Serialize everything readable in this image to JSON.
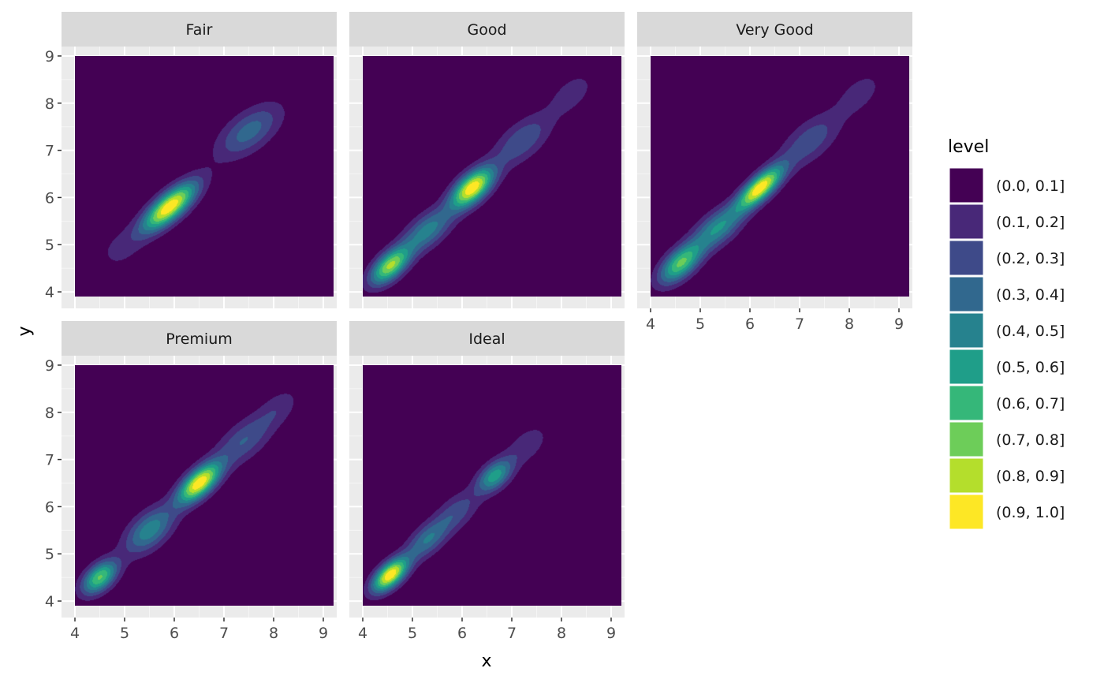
{
  "chart_data": {
    "type": "heatmap",
    "subtype": "faceted filled density contour",
    "xlabel": "x",
    "ylabel": "y",
    "xlim": [
      3.73,
      9.27
    ],
    "ylim": [
      3.65,
      9.2
    ],
    "x_ticks": [
      "4",
      "5",
      "6",
      "7",
      "8",
      "9"
    ],
    "y_ticks": [
      "4",
      "5",
      "6",
      "7",
      "8",
      "9"
    ],
    "density_domain": {
      "x": [
        4.0,
        9.2
      ],
      "y": [
        3.9,
        9.0
      ]
    },
    "grid": true,
    "legend": {
      "title": "level",
      "placement": "right",
      "entries": [
        "(0.0, 0.1]",
        "(0.1, 0.2]",
        "(0.2, 0.3]",
        "(0.3, 0.4]",
        "(0.4, 0.5]",
        "(0.5, 0.6]",
        "(0.6, 0.7]",
        "(0.7, 0.8]",
        "(0.8, 0.9]",
        "(0.9, 1.0]"
      ],
      "colors": [
        "#440154",
        "#482878",
        "#3E4A89",
        "#31688E",
        "#26828E",
        "#1F9E89",
        "#35B779",
        "#6DCD59",
        "#B4DE2C",
        "#FDE725"
      ]
    },
    "facets": [
      {
        "name": "Fair",
        "peaks": [
          {
            "x": 5.9,
            "y": 5.8,
            "sx": 0.38,
            "sy": 0.36,
            "rho": 0.75,
            "w": 1.0
          },
          {
            "x": 7.5,
            "y": 7.4,
            "sx": 0.45,
            "sy": 0.4,
            "rho": 0.6,
            "w": 0.35
          },
          {
            "x": 4.9,
            "y": 4.9,
            "sx": 0.35,
            "sy": 0.35,
            "rho": 0.3,
            "w": 0.12
          }
        ]
      },
      {
        "name": "Good",
        "peaks": [
          {
            "x": 6.2,
            "y": 6.2,
            "sx": 0.3,
            "sy": 0.3,
            "rho": 0.6,
            "w": 1.0
          },
          {
            "x": 4.55,
            "y": 4.55,
            "sx": 0.28,
            "sy": 0.28,
            "rho": 0.6,
            "w": 0.82
          },
          {
            "x": 5.3,
            "y": 5.3,
            "sx": 0.35,
            "sy": 0.33,
            "rho": 0.6,
            "w": 0.45
          },
          {
            "x": 7.2,
            "y": 7.2,
            "sx": 0.4,
            "sy": 0.38,
            "rho": 0.6,
            "w": 0.3
          },
          {
            "x": 8.2,
            "y": 8.2,
            "sx": 0.35,
            "sy": 0.35,
            "rho": 0.5,
            "w": 0.15
          }
        ]
      },
      {
        "name": "Very Good",
        "peaks": [
          {
            "x": 6.2,
            "y": 6.2,
            "sx": 0.32,
            "sy": 0.32,
            "rho": 0.75,
            "w": 1.0
          },
          {
            "x": 4.6,
            "y": 4.6,
            "sx": 0.3,
            "sy": 0.3,
            "rho": 0.6,
            "w": 0.72
          },
          {
            "x": 5.35,
            "y": 5.35,
            "sx": 0.35,
            "sy": 0.33,
            "rho": 0.6,
            "w": 0.5
          },
          {
            "x": 7.2,
            "y": 7.2,
            "sx": 0.42,
            "sy": 0.4,
            "rho": 0.6,
            "w": 0.28
          },
          {
            "x": 8.2,
            "y": 8.2,
            "sx": 0.35,
            "sy": 0.35,
            "rho": 0.5,
            "w": 0.15
          }
        ]
      },
      {
        "name": "Premium",
        "peaks": [
          {
            "x": 6.5,
            "y": 6.5,
            "sx": 0.3,
            "sy": 0.3,
            "rho": 0.65,
            "w": 1.0
          },
          {
            "x": 4.5,
            "y": 4.5,
            "sx": 0.25,
            "sy": 0.25,
            "rho": 0.5,
            "w": 0.72
          },
          {
            "x": 5.5,
            "y": 5.5,
            "sx": 0.35,
            "sy": 0.35,
            "rho": 0.55,
            "w": 0.48
          },
          {
            "x": 7.4,
            "y": 7.4,
            "sx": 0.4,
            "sy": 0.38,
            "rho": 0.6,
            "w": 0.3
          },
          {
            "x": 8.1,
            "y": 8.1,
            "sx": 0.3,
            "sy": 0.3,
            "rho": 0.5,
            "w": 0.15
          }
        ]
      },
      {
        "name": "Ideal",
        "peaks": [
          {
            "x": 4.55,
            "y": 4.55,
            "sx": 0.25,
            "sy": 0.25,
            "rho": 0.6,
            "w": 1.0
          },
          {
            "x": 5.3,
            "y": 5.3,
            "sx": 0.3,
            "sy": 0.3,
            "rho": 0.6,
            "w": 0.4
          },
          {
            "x": 6.65,
            "y": 6.65,
            "sx": 0.25,
            "sy": 0.25,
            "rho": 0.5,
            "w": 0.56
          },
          {
            "x": 7.3,
            "y": 7.3,
            "sx": 0.3,
            "sy": 0.3,
            "rho": 0.5,
            "w": 0.18
          },
          {
            "x": 5.9,
            "y": 5.9,
            "sx": 0.3,
            "sy": 0.3,
            "rho": 0.5,
            "w": 0.25
          }
        ]
      }
    ]
  }
}
